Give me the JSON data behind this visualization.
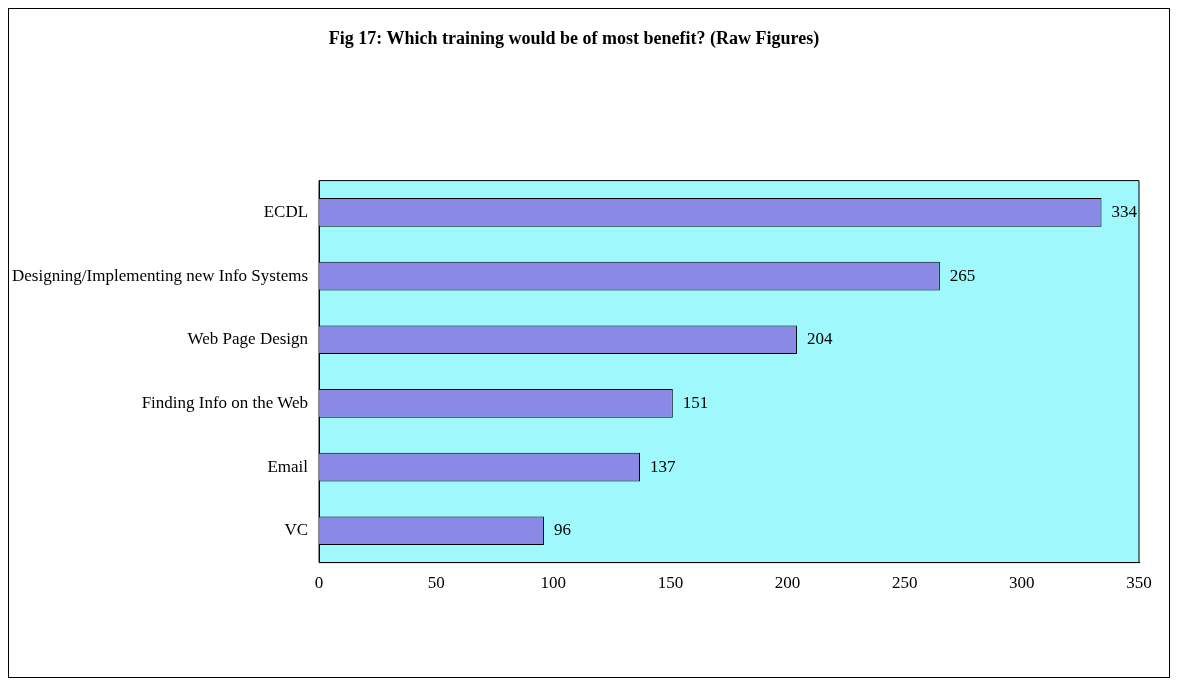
{
  "chart_data": {
    "type": "bar",
    "orientation": "horizontal",
    "title": "Fig 17: Which training would be of most benefit? (Raw Figures)",
    "categories": [
      "ECDL",
      "Designing/Implementing new Info Systems",
      "Web Page Design",
      "Finding Info on the Web",
      "Email",
      "VC"
    ],
    "values": [
      334,
      265,
      204,
      151,
      137,
      96
    ],
    "color": "#8a8ae6",
    "xlim": [
      0,
      350
    ],
    "xticks": [
      0,
      50,
      100,
      150,
      200,
      250,
      300,
      350
    ],
    "grid": false,
    "legend": false,
    "data_labels": true
  }
}
